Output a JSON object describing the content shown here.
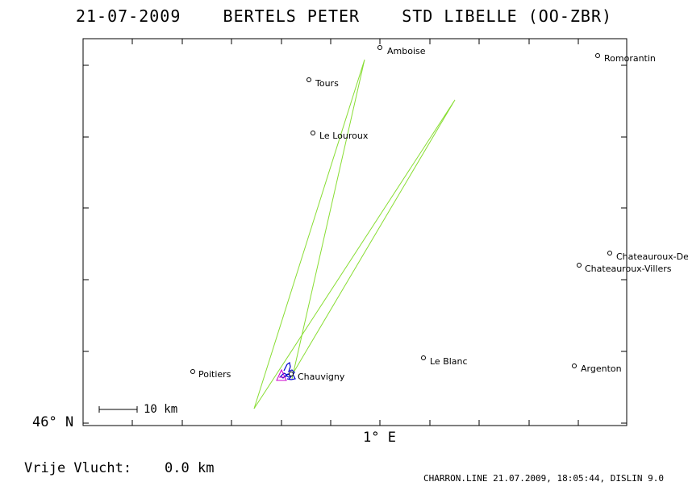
{
  "title": "21-07-2009    BERTELS PETER    STD LIBELLE (OO-ZBR)",
  "colors": {
    "track": "#88dd33",
    "route": "#0000cc",
    "marker": "#cc00cc",
    "frame": "#000000"
  },
  "places": [
    {
      "name": "Amboise",
      "icon": "circle-marker"
    },
    {
      "name": "Romorantin",
      "icon": "circle-marker"
    },
    {
      "name": "Tours",
      "icon": "circle-marker"
    },
    {
      "name": "Le Louroux",
      "icon": "circle-marker"
    },
    {
      "name": "Chateauroux-De",
      "icon": "circle-marker"
    },
    {
      "name": "Chateauroux-Villers",
      "icon": "circle-marker"
    },
    {
      "name": "Le Blanc",
      "icon": "circle-marker"
    },
    {
      "name": "Argenton",
      "icon": "circle-marker"
    },
    {
      "name": "Poitiers",
      "icon": "circle-marker"
    },
    {
      "name": "Chauvigny",
      "icon": "circle-marker"
    }
  ],
  "axes": {
    "y_label": "46° N",
    "x_label": "1° E"
  },
  "scale_bar": {
    "label": "10 km"
  },
  "free_flight": {
    "label": "Vrije Vlucht:",
    "value": "0.0 km"
  },
  "footer": "CHARRON.LINE 21.07.2009, 18:05:44, DISLIN 9.0"
}
